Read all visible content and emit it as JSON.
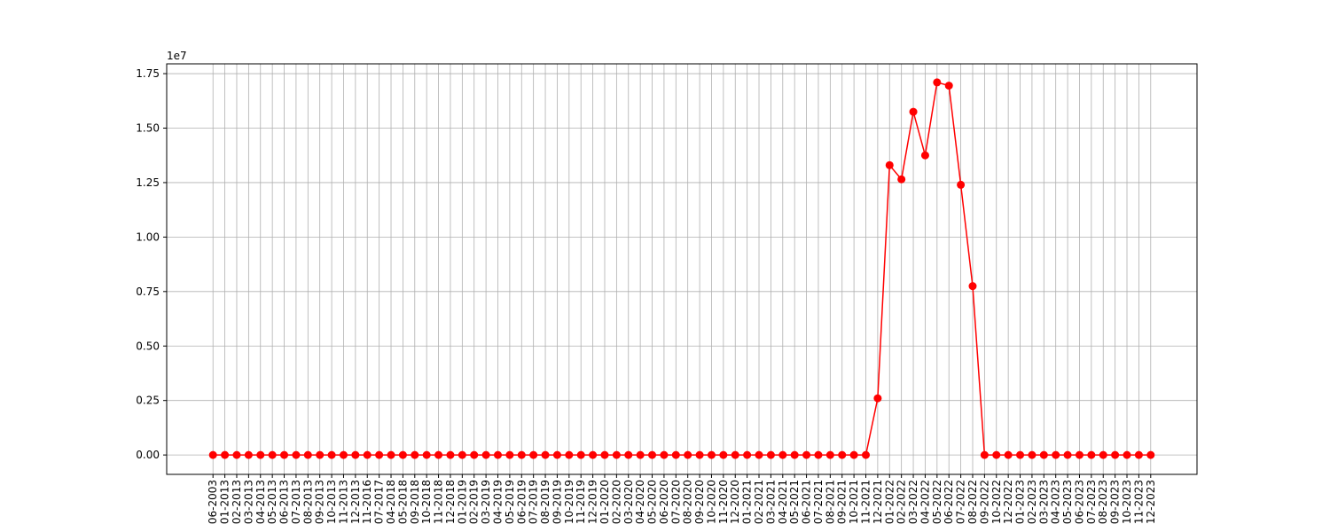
{
  "chart_data": {
    "type": "line",
    "y_offset_label": "1e7",
    "categories": [
      "06-2003",
      "01-2013",
      "02-2013",
      "03-2013",
      "04-2013",
      "05-2013",
      "06-2013",
      "07-2013",
      "08-2013",
      "09-2013",
      "10-2013",
      "11-2013",
      "12-2013",
      "11-2016",
      "07-2017",
      "04-2018",
      "05-2018",
      "09-2018",
      "10-2018",
      "11-2018",
      "12-2018",
      "01-2019",
      "02-2019",
      "03-2019",
      "04-2019",
      "05-2019",
      "06-2019",
      "07-2019",
      "08-2019",
      "09-2019",
      "10-2019",
      "11-2019",
      "12-2019",
      "01-2020",
      "02-2020",
      "03-2020",
      "04-2020",
      "05-2020",
      "06-2020",
      "07-2020",
      "08-2020",
      "09-2020",
      "10-2020",
      "11-2020",
      "12-2020",
      "01-2021",
      "02-2021",
      "03-2021",
      "04-2021",
      "05-2021",
      "06-2021",
      "07-2021",
      "08-2021",
      "09-2021",
      "10-2021",
      "11-2021",
      "12-2021",
      "01-2022",
      "02-2022",
      "03-2022",
      "04-2022",
      "05-2022",
      "06-2022",
      "07-2022",
      "08-2022",
      "09-2022",
      "10-2022",
      "12-2022",
      "01-2023",
      "02-2023",
      "03-2023",
      "04-2023",
      "05-2023",
      "06-2023",
      "07-2023",
      "08-2023",
      "09-2023",
      "10-2023",
      "11-2023",
      "12-2023"
    ],
    "values": [
      0,
      0,
      0,
      0,
      0,
      0,
      0,
      0,
      0,
      0,
      0,
      0,
      0,
      0,
      0,
      0,
      0,
      0,
      0,
      0,
      0,
      0,
      0,
      0,
      0,
      0,
      0,
      0,
      0,
      0,
      0,
      0,
      0,
      0,
      0,
      0,
      0,
      0,
      0,
      0,
      0,
      0,
      0,
      0,
      0,
      0,
      0,
      0,
      0,
      0,
      0,
      0,
      0,
      0,
      0,
      0,
      2600000,
      13300000,
      12650000,
      15750000,
      13750000,
      17100000,
      16950000,
      12400000,
      7750000,
      0,
      0,
      0,
      0,
      0,
      0,
      0,
      0,
      0,
      0,
      0,
      0,
      0,
      0,
      0
    ],
    "color": "red",
    "ylim": [
      -890000,
      17950000
    ],
    "yticks": [
      {
        "value": 0,
        "label": "0.00"
      },
      {
        "value": 2500000,
        "label": "0.25"
      },
      {
        "value": 5000000,
        "label": "0.50"
      },
      {
        "value": 7500000,
        "label": "0.75"
      },
      {
        "value": 10000000,
        "label": "1.00"
      },
      {
        "value": 12500000,
        "label": "1.25"
      },
      {
        "value": 15000000,
        "label": "1.50"
      },
      {
        "value": 17500000,
        "label": "1.75"
      }
    ],
    "grid": true
  }
}
